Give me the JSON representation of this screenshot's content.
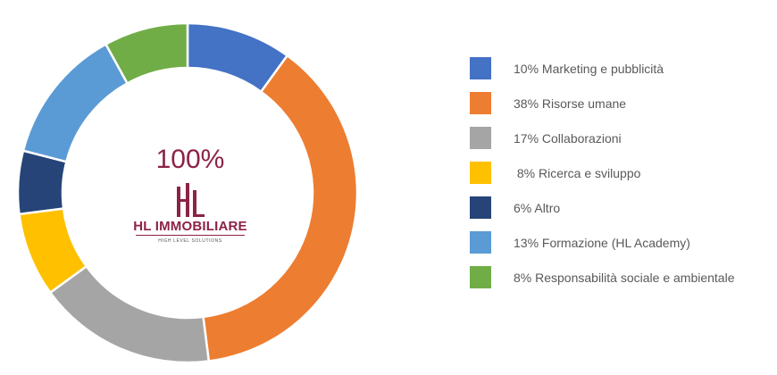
{
  "chart_data": {
    "type": "pie",
    "donut": true,
    "center_label": "100%",
    "legend_position": "right",
    "slices": [
      {
        "label": "10% Marketing e pubblicità",
        "value": 10,
        "color": "#4472c4"
      },
      {
        "label": "38% Risorse umane",
        "value": 38,
        "color": "#ed7d31"
      },
      {
        "label": "17% Collaborazioni",
        "value": 17,
        "color": "#a5a5a5"
      },
      {
        "label": " 8% Ricerca e sviluppo",
        "value": 8,
        "color": "#ffc000"
      },
      {
        "label": "6% Altro",
        "value": 6,
        "color": "#264478"
      },
      {
        "label": "13% Formazione (HL Academy)",
        "value": 13,
        "color": "#5b9bd5"
      },
      {
        "label": "8% Responsabilità sociale e ambientale",
        "value": 8,
        "color": "#70ad47"
      }
    ]
  },
  "logo": {
    "title": "HL IMMOBILIARE",
    "subtitle": "HIGH LEVEL SOLUTIONS",
    "color": "#8c2246"
  }
}
